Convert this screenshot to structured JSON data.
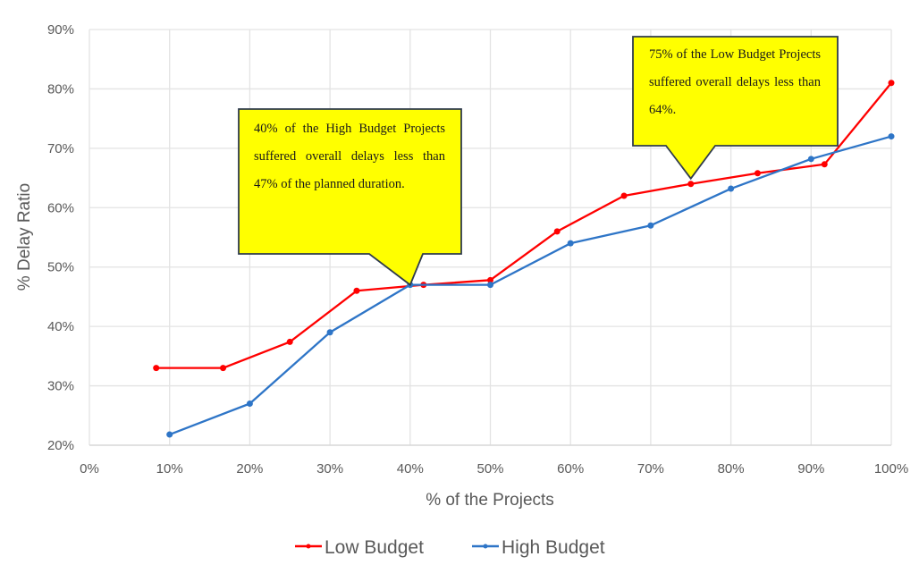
{
  "chart_data": {
    "type": "line",
    "title": "",
    "xlabel": "% of the Projects",
    "ylabel": "% Delay Ratio",
    "xlim": [
      0,
      100
    ],
    "ylim": [
      20,
      90
    ],
    "x_ticks": [
      "0%",
      "10%",
      "20%",
      "30%",
      "40%",
      "50%",
      "60%",
      "70%",
      "80%",
      "90%",
      "100%"
    ],
    "y_ticks": [
      "20%",
      "30%",
      "40%",
      "50%",
      "60%",
      "70%",
      "80%",
      "90%"
    ],
    "grid": true,
    "legend_position": "bottom",
    "series": [
      {
        "name": "Low Budget",
        "color": "#ff0000",
        "x": [
          8.33,
          16.67,
          25,
          33.33,
          41.67,
          50,
          58.33,
          66.67,
          75,
          83.33,
          91.67,
          100
        ],
        "y": [
          33,
          33,
          37.4,
          46,
          47,
          47.8,
          56,
          62,
          64,
          65.8,
          67.3,
          81
        ]
      },
      {
        "name": "High Budget",
        "color": "#2e75c7",
        "x": [
          10,
          20,
          30,
          40,
          50,
          60,
          70,
          80,
          90,
          100
        ],
        "y": [
          21.8,
          27,
          39,
          47,
          47,
          54,
          57,
          63.2,
          68.2,
          72
        ]
      }
    ],
    "annotations": [
      {
        "text": "40% of the High Budget Projects suffered overall delays less than 47% of the planned duration.",
        "points_to": {
          "series": "High Budget",
          "x": 40,
          "y": 47
        }
      },
      {
        "text": "75% of the Low Budget Projects suffered overall delays less than 64%.",
        "points_to": {
          "series": "Low Budget",
          "x": 75,
          "y": 64
        }
      }
    ]
  },
  "labels": {
    "xlabel": "% of the Projects",
    "ylabel": "% Delay Ratio",
    "legend_low": "Low Budget",
    "legend_high": "High Budget",
    "callout_high": "40% of the High Budget Projects suffered overall delays less than 47% of the planned duration.",
    "callout_low": "75% of the Low Budget Projects suffered overall delays less than 64%."
  },
  "colors": {
    "low_budget": "#ff0000",
    "high_budget": "#2e75c7",
    "callout_fill": "#ffff00",
    "callout_border": "#2f3b4c",
    "grid": "#e3e3e3"
  }
}
